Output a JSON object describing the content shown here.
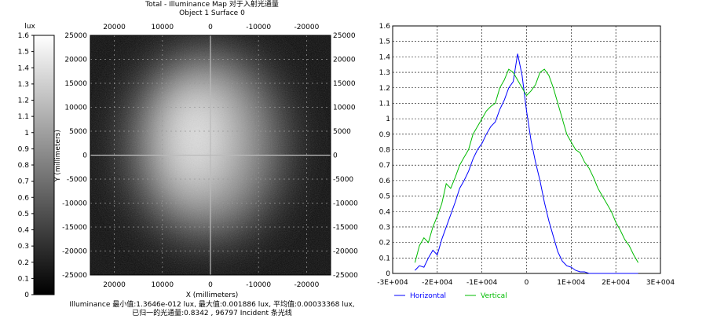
{
  "heatmap": {
    "title": "Total - Illuminance Map 对于入射光通量",
    "subtitle": "Object 1 Surface 0",
    "colorbar_unit": "lux",
    "colorbar_ticks": [
      "1.6",
      "1.5",
      "1.4",
      "1.3",
      "1.2",
      "1.1",
      "1",
      "0.9",
      "0.8",
      "0.7",
      "0.6",
      "0.5",
      "0.4",
      "0.3",
      "0.2",
      "0.1",
      "0"
    ],
    "x_ticks": [
      "20000",
      "10000",
      "0",
      "-10000",
      "-20000"
    ],
    "y_ticks": [
      "25000",
      "20000",
      "15000",
      "10000",
      "5000",
      "0",
      "-5000",
      "-10000",
      "-15000",
      "-20000",
      "-25000"
    ],
    "x_label": "X (millimeters)",
    "y_label": "Y (millimeters)",
    "colormap": "grayscale"
  },
  "summary": {
    "line1": "Illuminance 最小值:1.3646e-012 lux, 最大值:0.001886 lux, 平均值:0.00033368 lux,",
    "line2": "已归一的光通量:0.8342 , 96797 Incident 条光线"
  },
  "chart_data": {
    "type": "line",
    "xlim": [
      -30000,
      30000
    ],
    "ylim": [
      0,
      1.6
    ],
    "x_tick_labels": [
      "-3E+004",
      "-2E+004",
      "-1E+004",
      "0",
      "1E+004",
      "2E+004",
      "3E+004"
    ],
    "y_tick_labels": [
      "0",
      "0.1",
      "0.2",
      "0.3",
      "0.4",
      "0.5",
      "0.6",
      "0.7",
      "0.8",
      "0.9",
      "1",
      "1.1",
      "1.2",
      "1.3",
      "1.4",
      "1.5",
      "1.6"
    ],
    "grid": true,
    "legend_position": "bottom-left",
    "series": [
      {
        "name": "Horizontal",
        "color": "#0000ff",
        "x": [
          -25000,
          -24000,
          -23000,
          -22000,
          -21000,
          -20000,
          -19000,
          -18000,
          -17000,
          -16000,
          -15000,
          -14000,
          -13000,
          -12000,
          -11000,
          -10000,
          -9000,
          -8000,
          -7000,
          -6000,
          -5000,
          -4000,
          -3000,
          -2000,
          -1000,
          0,
          1000,
          2000,
          3000,
          4000,
          5000,
          6000,
          7000,
          8000,
          9000,
          10000,
          11000,
          12000,
          13000,
          14000,
          15000,
          16000,
          17000,
          18000,
          19000,
          20000,
          21000,
          22000,
          23000,
          24000,
          25000
        ],
        "y": [
          0.02,
          0.05,
          0.04,
          0.1,
          0.15,
          0.12,
          0.22,
          0.3,
          0.38,
          0.46,
          0.55,
          0.6,
          0.66,
          0.74,
          0.8,
          0.84,
          0.9,
          0.95,
          0.98,
          1.06,
          1.12,
          1.2,
          1.24,
          1.42,
          1.28,
          1.05,
          0.86,
          0.72,
          0.6,
          0.46,
          0.34,
          0.24,
          0.14,
          0.08,
          0.05,
          0.04,
          0.02,
          0.01,
          0.01,
          0,
          0,
          0,
          0,
          0,
          0,
          0,
          0,
          0,
          0,
          0,
          0
        ]
      },
      {
        "name": "Vertical",
        "color": "#00bb00",
        "x": [
          -25000,
          -24000,
          -23000,
          -22000,
          -21000,
          -20000,
          -19000,
          -18000,
          -17000,
          -16000,
          -15000,
          -14000,
          -13000,
          -12000,
          -11000,
          -10000,
          -9000,
          -8000,
          -7000,
          -6000,
          -5000,
          -4000,
          -3000,
          -2000,
          -1000,
          0,
          1000,
          2000,
          3000,
          4000,
          5000,
          6000,
          7000,
          8000,
          9000,
          10000,
          11000,
          12000,
          13000,
          14000,
          15000,
          16000,
          17000,
          18000,
          19000,
          20000,
          21000,
          22000,
          23000,
          24000,
          25000
        ],
        "y": [
          0.07,
          0.18,
          0.23,
          0.2,
          0.3,
          0.37,
          0.45,
          0.58,
          0.55,
          0.62,
          0.7,
          0.75,
          0.8,
          0.9,
          0.95,
          1.0,
          1.05,
          1.08,
          1.1,
          1.2,
          1.25,
          1.32,
          1.3,
          1.25,
          1.2,
          1.15,
          1.18,
          1.22,
          1.3,
          1.32,
          1.28,
          1.2,
          1.1,
          1.0,
          0.9,
          0.85,
          0.8,
          0.78,
          0.72,
          0.68,
          0.62,
          0.55,
          0.5,
          0.45,
          0.4,
          0.33,
          0.28,
          0.22,
          0.18,
          0.12,
          0.07
        ]
      }
    ]
  }
}
